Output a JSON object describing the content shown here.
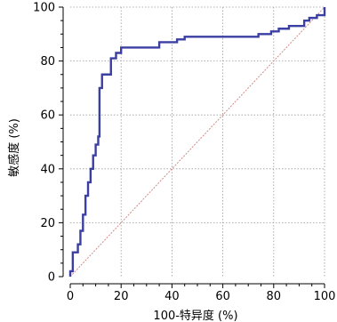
{
  "chart_data": {
    "type": "line",
    "title": "",
    "xlabel": "100-特异度 (%)",
    "ylabel": "敏感度 (%)",
    "xlim": [
      0,
      100
    ],
    "ylim": [
      0,
      100
    ],
    "x_ticks": [
      0,
      20,
      40,
      60,
      80,
      100
    ],
    "y_ticks": [
      0,
      20,
      40,
      60,
      80,
      100
    ],
    "x_tick_labels": [
      "0",
      "20",
      "40",
      "60",
      "80",
      "100"
    ],
    "y_tick_labels": [
      "0",
      "20",
      "40",
      "60",
      "80",
      "100"
    ],
    "grid": true,
    "colors": {
      "roc": "#3b3fa3",
      "reference": "#d08b86",
      "grid": "#9a9a9a"
    },
    "series": [
      {
        "points": [
          [
            0,
            0
          ],
          [
            0,
            2
          ],
          [
            1,
            2
          ],
          [
            1,
            9
          ],
          [
            3,
            9
          ],
          [
            3,
            12
          ],
          [
            4,
            12
          ],
          [
            4,
            17
          ],
          [
            5,
            17
          ],
          [
            5,
            23
          ],
          [
            6,
            23
          ],
          [
            6,
            30
          ],
          [
            7,
            30
          ],
          [
            7,
            35
          ],
          [
            8,
            35
          ],
          [
            8,
            40
          ],
          [
            9,
            40
          ],
          [
            9,
            45
          ],
          [
            10,
            45
          ],
          [
            10,
            49
          ],
          [
            11,
            49
          ],
          [
            11,
            52
          ],
          [
            11.5,
            52
          ],
          [
            11.5,
            70
          ],
          [
            12.5,
            70
          ],
          [
            12.5,
            75
          ],
          [
            16,
            75
          ],
          [
            16,
            81
          ],
          [
            18,
            81
          ],
          [
            18,
            83
          ],
          [
            20,
            83
          ],
          [
            20,
            85
          ],
          [
            35,
            85
          ],
          [
            35,
            87
          ],
          [
            42,
            87
          ],
          [
            42,
            88
          ],
          [
            45,
            88
          ],
          [
            45,
            89
          ],
          [
            74,
            89
          ],
          [
            74,
            90
          ],
          [
            79,
            90
          ],
          [
            79,
            91
          ],
          [
            82,
            91
          ],
          [
            82,
            92
          ],
          [
            86,
            92
          ],
          [
            86,
            93
          ],
          [
            92,
            93
          ],
          [
            92,
            95
          ],
          [
            94,
            95
          ],
          [
            94,
            96
          ],
          [
            97,
            96
          ],
          [
            97,
            97
          ],
          [
            100,
            97
          ],
          [
            100,
            100
          ]
        ]
      },
      {
        "points": [
          [
            0,
            0
          ],
          [
            100,
            100
          ]
        ]
      }
    ]
  }
}
